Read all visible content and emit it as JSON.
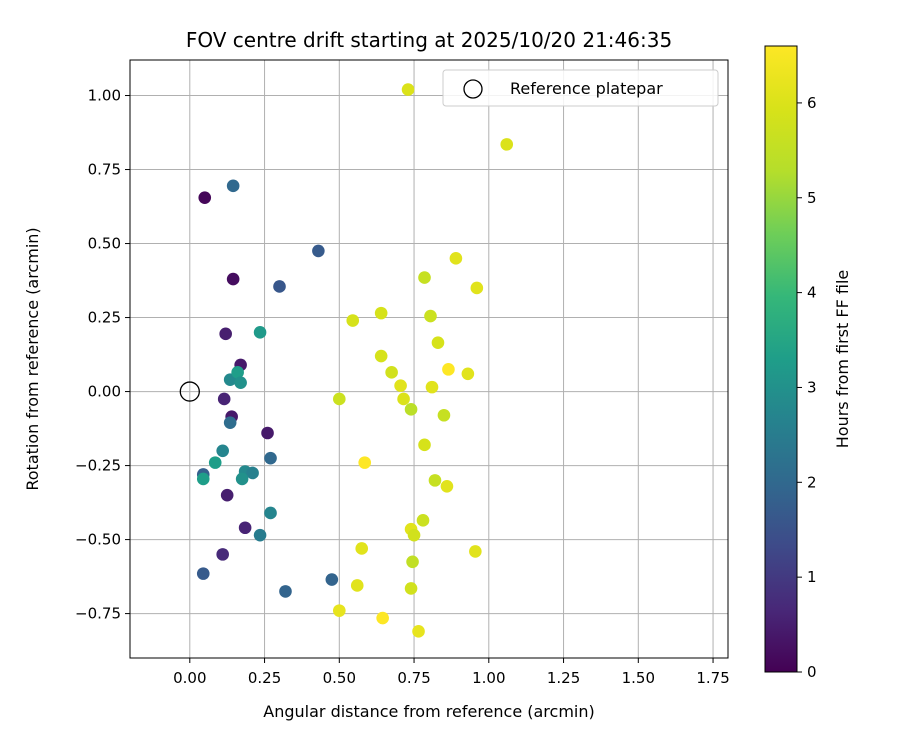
{
  "chart_data": {
    "type": "scatter",
    "title": "FOV centre drift starting at 2025/10/20 21:46:35",
    "xlabel": "Angular distance from reference (arcmin)",
    "ylabel": "Rotation from reference (arcmin)",
    "xlim": [
      -0.2,
      1.8
    ],
    "ylim": [
      -0.9,
      1.12
    ],
    "xticks": [
      0.0,
      0.25,
      0.5,
      0.75,
      1.0,
      1.25,
      1.5,
      1.75
    ],
    "xtick_labels": [
      "0.00",
      "0.25",
      "0.50",
      "0.75",
      "1.00",
      "1.25",
      "1.50",
      "1.75"
    ],
    "yticks": [
      -0.75,
      -0.5,
      -0.25,
      0.0,
      0.25,
      0.5,
      0.75,
      1.0
    ],
    "ytick_labels": [
      "−0.75",
      "−0.50",
      "−0.25",
      "0.00",
      "0.25",
      "0.50",
      "0.75",
      "1.00"
    ],
    "grid": true,
    "legend": {
      "position": "top-right",
      "entries": [
        "Reference platepar"
      ]
    },
    "reference_point": {
      "x": 0.0,
      "y": 0.0,
      "label": "Reference platepar"
    },
    "colorbar": {
      "label": "Hours from first FF file",
      "colormap": "viridis",
      "range": [
        0,
        6.6
      ],
      "ticks": [
        0,
        1,
        2,
        3,
        4,
        5,
        6
      ],
      "tick_labels": [
        "0",
        "1",
        "2",
        "3",
        "4",
        "5",
        "6"
      ]
    },
    "points": [
      {
        "x": 0.05,
        "y": 0.655,
        "hours": 0.1
      },
      {
        "x": 0.145,
        "y": 0.38,
        "hours": 0.2
      },
      {
        "x": 0.12,
        "y": 0.195,
        "hours": 0.5
      },
      {
        "x": 0.17,
        "y": 0.09,
        "hours": 0.4
      },
      {
        "x": 0.115,
        "y": -0.025,
        "hours": 0.6
      },
      {
        "x": 0.14,
        "y": -0.085,
        "hours": 0.4
      },
      {
        "x": 0.26,
        "y": -0.14,
        "hours": 0.4
      },
      {
        "x": 0.125,
        "y": -0.35,
        "hours": 0.5
      },
      {
        "x": 0.185,
        "y": -0.46,
        "hours": 0.6
      },
      {
        "x": 0.11,
        "y": -0.55,
        "hours": 0.7
      },
      {
        "x": 0.145,
        "y": 0.695,
        "hours": 2.0
      },
      {
        "x": 0.43,
        "y": 0.475,
        "hours": 1.7
      },
      {
        "x": 0.3,
        "y": 0.355,
        "hours": 1.6
      },
      {
        "x": 0.045,
        "y": -0.615,
        "hours": 1.7
      },
      {
        "x": 0.32,
        "y": -0.675,
        "hours": 1.9
      },
      {
        "x": 0.475,
        "y": -0.635,
        "hours": 1.9
      },
      {
        "x": 0.27,
        "y": -0.225,
        "hours": 2.0
      },
      {
        "x": 0.045,
        "y": -0.28,
        "hours": 1.8
      },
      {
        "x": 0.135,
        "y": -0.105,
        "hours": 2.1
      },
      {
        "x": 0.235,
        "y": -0.485,
        "hours": 2.5
      },
      {
        "x": 0.27,
        "y": -0.41,
        "hours": 2.7
      },
      {
        "x": 0.135,
        "y": 0.04,
        "hours": 2.8
      },
      {
        "x": 0.16,
        "y": 0.065,
        "hours": 3.3
      },
      {
        "x": 0.17,
        "y": 0.03,
        "hours": 3.0
      },
      {
        "x": 0.235,
        "y": 0.2,
        "hours": 3.2
      },
      {
        "x": 0.11,
        "y": -0.2,
        "hours": 2.7
      },
      {
        "x": 0.085,
        "y": -0.24,
        "hours": 3.3
      },
      {
        "x": 0.045,
        "y": -0.295,
        "hours": 3.3
      },
      {
        "x": 0.185,
        "y": -0.27,
        "hours": 2.8
      },
      {
        "x": 0.21,
        "y": -0.275,
        "hours": 2.6
      },
      {
        "x": 0.175,
        "y": -0.295,
        "hours": 3.0
      },
      {
        "x": 0.73,
        "y": 1.02,
        "hours": 6.0
      },
      {
        "x": 1.06,
        "y": 0.835,
        "hours": 6.0
      },
      {
        "x": 0.89,
        "y": 0.45,
        "hours": 6.1
      },
      {
        "x": 0.785,
        "y": 0.385,
        "hours": 5.6
      },
      {
        "x": 0.96,
        "y": 0.35,
        "hours": 6.1
      },
      {
        "x": 0.64,
        "y": 0.265,
        "hours": 5.9
      },
      {
        "x": 0.805,
        "y": 0.255,
        "hours": 5.7
      },
      {
        "x": 0.545,
        "y": 0.24,
        "hours": 5.9
      },
      {
        "x": 0.83,
        "y": 0.165,
        "hours": 5.9
      },
      {
        "x": 0.64,
        "y": 0.12,
        "hours": 5.9
      },
      {
        "x": 0.865,
        "y": 0.075,
        "hours": 6.6
      },
      {
        "x": 0.675,
        "y": 0.065,
        "hours": 5.8
      },
      {
        "x": 0.93,
        "y": 0.06,
        "hours": 6.1
      },
      {
        "x": 0.705,
        "y": 0.02,
        "hours": 6.1
      },
      {
        "x": 0.81,
        "y": 0.015,
        "hours": 6.1
      },
      {
        "x": 0.715,
        "y": -0.025,
        "hours": 6.0
      },
      {
        "x": 0.5,
        "y": -0.025,
        "hours": 5.7
      },
      {
        "x": 0.74,
        "y": -0.06,
        "hours": 5.4
      },
      {
        "x": 0.85,
        "y": -0.08,
        "hours": 5.6
      },
      {
        "x": 0.785,
        "y": -0.18,
        "hours": 5.9
      },
      {
        "x": 0.585,
        "y": -0.24,
        "hours": 6.6
      },
      {
        "x": 0.82,
        "y": -0.3,
        "hours": 5.6
      },
      {
        "x": 0.86,
        "y": -0.32,
        "hours": 6.1
      },
      {
        "x": 0.78,
        "y": -0.435,
        "hours": 5.7
      },
      {
        "x": 0.74,
        "y": -0.465,
        "hours": 6.1
      },
      {
        "x": 0.75,
        "y": -0.485,
        "hours": 5.8
      },
      {
        "x": 0.575,
        "y": -0.53,
        "hours": 6.1
      },
      {
        "x": 0.955,
        "y": -0.54,
        "hours": 6.1
      },
      {
        "x": 0.745,
        "y": -0.575,
        "hours": 5.5
      },
      {
        "x": 0.56,
        "y": -0.655,
        "hours": 6.1
      },
      {
        "x": 0.74,
        "y": -0.665,
        "hours": 5.8
      },
      {
        "x": 0.5,
        "y": -0.74,
        "hours": 6.2
      },
      {
        "x": 0.645,
        "y": -0.765,
        "hours": 6.6
      },
      {
        "x": 0.765,
        "y": -0.81,
        "hours": 6.2
      }
    ]
  }
}
